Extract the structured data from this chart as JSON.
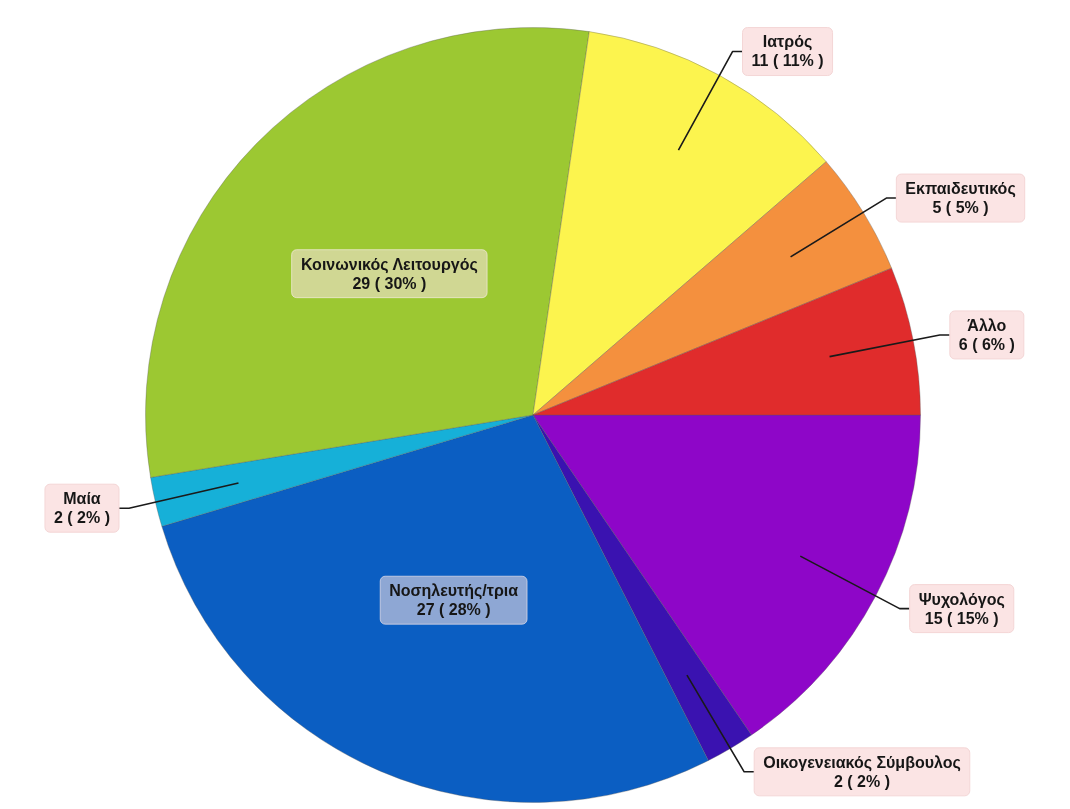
{
  "chart_data": {
    "type": "pie",
    "categories": [
      "Ψυχολόγος",
      "Οικογενειακός Σύμβουλος",
      "Νοσηλευτής/τρια",
      "Μαία",
      "Κοινωνικός Λειτουργός",
      "Ιατρός",
      "Εκπαιδευτικός",
      "Άλλο"
    ],
    "values": [
      15,
      2,
      27,
      2,
      29,
      11,
      5,
      6
    ],
    "colors": [
      "#8e06c8",
      "#3a12b0",
      "#0b5ec2",
      "#16b0d8",
      "#9cc832",
      "#fcf44e",
      "#f4903e",
      "#e02c2c"
    ],
    "value_labels": [
      "15 ( 15% )",
      "2 ( 2% )",
      "27 ( 28% )",
      "2 ( 2% )",
      "29 ( 30% )",
      "11 ( 11% )",
      "5 ( 5% )",
      "6 ( 6% )"
    ],
    "legend": false
  }
}
